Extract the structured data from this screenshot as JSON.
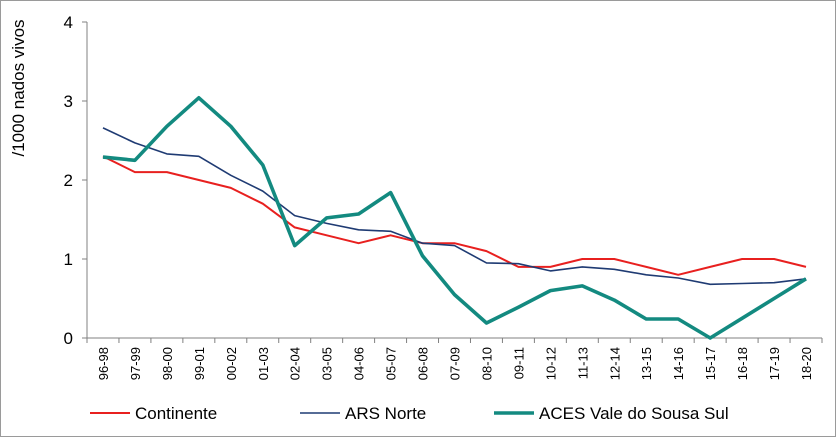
{
  "chart_data": {
    "type": "line",
    "title": "",
    "xlabel": "",
    "ylabel": "/1000 nados vivos",
    "ylim": [
      0,
      4
    ],
    "yticks": [
      0,
      1,
      2,
      3,
      4
    ],
    "grid": false,
    "legend_position": "bottom",
    "categories": [
      "96-98",
      "97-99",
      "98-00",
      "99-01",
      "00-02",
      "01-03",
      "02-04",
      "03-05",
      "04-06",
      "05-07",
      "06-08",
      "07-09",
      "08-10",
      "09-11",
      "10-12",
      "11-13",
      "12-14",
      "13-15",
      "14-16",
      "15-17",
      "16-18",
      "17-19",
      "18-20"
    ],
    "series": [
      {
        "name": "Continente",
        "color": "#e8201f",
        "values": [
          2.3,
          2.1,
          2.1,
          2.0,
          1.9,
          1.7,
          1.4,
          1.3,
          1.2,
          1.3,
          1.2,
          1.2,
          1.1,
          0.9,
          0.9,
          1.0,
          1.0,
          0.9,
          0.8,
          0.9,
          1.0,
          1.0,
          0.9
        ]
      },
      {
        "name": "ARS Norte",
        "color": "#1f3b73",
        "values": [
          2.66,
          2.47,
          2.33,
          2.3,
          2.06,
          1.86,
          1.55,
          1.45,
          1.37,
          1.35,
          1.2,
          1.17,
          0.95,
          0.94,
          0.85,
          0.9,
          0.87,
          0.8,
          0.76,
          0.68,
          0.69,
          0.7,
          0.75
        ]
      },
      {
        "name": "ACES Vale do Sousa Sul",
        "color": "#138a80",
        "values": [
          2.29,
          2.25,
          2.68,
          3.04,
          2.68,
          2.19,
          1.17,
          1.52,
          1.57,
          1.84,
          1.04,
          0.55,
          0.19,
          0.39,
          0.6,
          0.66,
          0.48,
          0.24,
          0.24,
          0.0,
          0.25,
          0.5,
          0.75
        ]
      }
    ]
  }
}
